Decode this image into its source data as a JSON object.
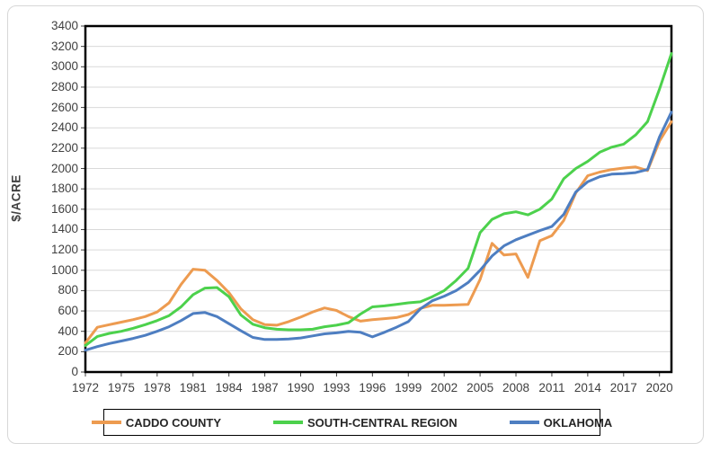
{
  "chart_data": {
    "type": "line",
    "title": "",
    "ylabel": "$/ACRE",
    "xlabel": "",
    "ylim": [
      0,
      3400
    ],
    "ytick_step": 200,
    "grid": "horizontal",
    "legend_position": "bottom",
    "x": [
      1972,
      1973,
      1974,
      1975,
      1976,
      1977,
      1978,
      1979,
      1980,
      1981,
      1982,
      1983,
      1984,
      1985,
      1986,
      1987,
      1988,
      1989,
      1990,
      1991,
      1992,
      1993,
      1994,
      1995,
      1996,
      1997,
      1998,
      1999,
      2000,
      2001,
      2002,
      2003,
      2004,
      2005,
      2006,
      2007,
      2008,
      2009,
      2010,
      2011,
      2012,
      2013,
      2014,
      2015,
      2016,
      2017,
      2018,
      2019,
      2020,
      2021
    ],
    "xtick_labels": [
      "1972",
      "1975",
      "1978",
      "1981",
      "1984",
      "1987",
      "1990",
      "1993",
      "1996",
      "1999",
      "2002",
      "2005",
      "2008",
      "2011",
      "2014",
      "2017",
      "2020"
    ],
    "series": [
      {
        "name": "CADDO COUNTY",
        "color": "#ED9B50",
        "values": [
          285,
          440,
          465,
          490,
          515,
          545,
          590,
          680,
          860,
          1010,
          1000,
          900,
          780,
          620,
          515,
          465,
          460,
          495,
          540,
          590,
          630,
          605,
          545,
          500,
          515,
          525,
          535,
          565,
          625,
          655,
          655,
          660,
          665,
          910,
          1265,
          1150,
          1160,
          930,
          1290,
          1340,
          1490,
          1760,
          1930,
          1965,
          1990,
          2005,
          2015,
          1980,
          2270,
          2460
        ]
      },
      {
        "name": "SOUTH-CENTRAL REGION",
        "color": "#4CD14C",
        "values": [
          260,
          350,
          380,
          400,
          430,
          465,
          505,
          555,
          640,
          760,
          825,
          830,
          740,
          560,
          470,
          435,
          420,
          415,
          415,
          420,
          445,
          460,
          485,
          570,
          640,
          650,
          665,
          680,
          690,
          740,
          800,
          900,
          1020,
          1370,
          1500,
          1555,
          1575,
          1545,
          1600,
          1700,
          1900,
          2000,
          2070,
          2160,
          2210,
          2240,
          2330,
          2460,
          2780,
          3130
        ]
      },
      {
        "name": "OKLAHOMA",
        "color": "#4E7EC1",
        "values": [
          215,
          250,
          280,
          305,
          330,
          360,
          400,
          445,
          505,
          575,
          585,
          545,
          475,
          405,
          340,
          320,
          320,
          325,
          335,
          355,
          375,
          385,
          400,
          390,
          345,
          390,
          440,
          495,
          620,
          700,
          745,
          800,
          880,
          1000,
          1140,
          1240,
          1300,
          1345,
          1390,
          1430,
          1550,
          1770,
          1870,
          1920,
          1945,
          1950,
          1960,
          1990,
          2310,
          2555
        ]
      }
    ]
  },
  "colors": {
    "gridline": "#D9D9D9",
    "plot_border": "#000000",
    "tick": "#404040",
    "tick_text": "#404040",
    "legend_border": "#000000",
    "frame_border": "#D7D7D7",
    "background": "#FFFFFF"
  }
}
